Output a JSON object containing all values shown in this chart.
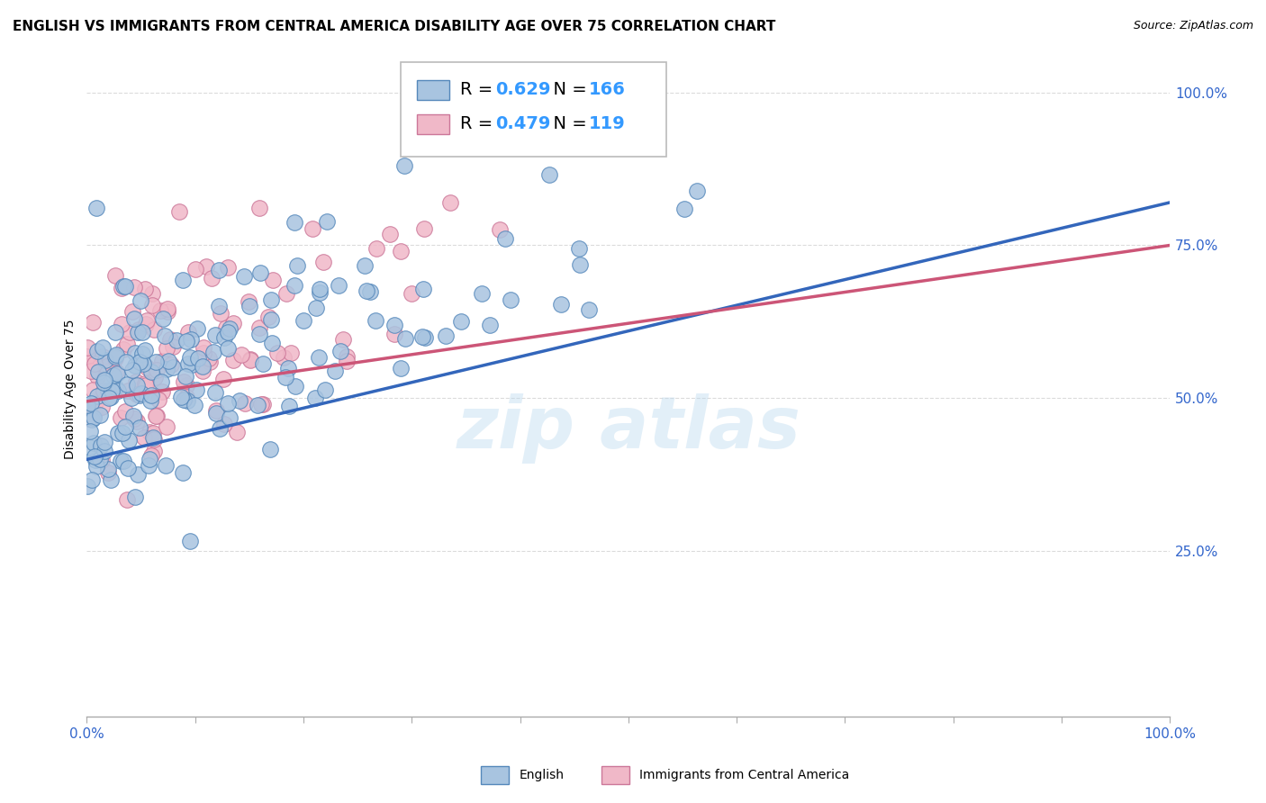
{
  "title": "ENGLISH VS IMMIGRANTS FROM CENTRAL AMERICA DISABILITY AGE OVER 75 CORRELATION CHART",
  "source": "Source: ZipAtlas.com",
  "ylabel": "Disability Age Over 75",
  "watermark": "zip atlas",
  "english": {
    "R": 0.629,
    "N": 166,
    "color": "#a8c4e0",
    "edge_color": "#5588bb",
    "line_color": "#3366bb",
    "label": "English"
  },
  "immigrants": {
    "R": 0.479,
    "N": 119,
    "color": "#f0b8c8",
    "edge_color": "#cc7799",
    "line_color": "#cc5577",
    "label": "Immigrants from Central America"
  },
  "xlim": [
    0.0,
    1.0
  ],
  "ylim": [
    0.0,
    1.0
  ],
  "x_ticks": [
    0.0,
    0.1,
    0.2,
    0.3,
    0.4,
    0.5,
    0.6,
    0.7,
    0.8,
    0.9,
    1.0
  ],
  "y_ticks": [
    0.25,
    0.5,
    0.75,
    1.0
  ],
  "x_tick_labels": [
    "0.0%",
    "",
    "",
    "",
    "",
    "",
    "",
    "",
    "",
    "",
    "100.0%"
  ],
  "y_tick_labels": [
    "25.0%",
    "50.0%",
    "75.0%",
    "100.0%"
  ],
  "title_fontsize": 11,
  "axis_label_fontsize": 10,
  "tick_fontsize": 11,
  "background_color": "#ffffff",
  "grid_color": "#cccccc",
  "legend_blue": "#3399ff",
  "eng_line_start_y": 0.4,
  "eng_line_end_y": 0.82,
  "imm_line_start_y": 0.495,
  "imm_line_end_y": 0.75
}
